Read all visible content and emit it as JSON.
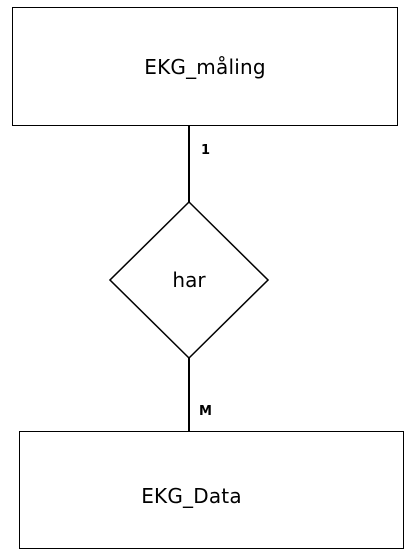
{
  "entities": {
    "top": {
      "label": "EKG_måling"
    },
    "bottom": {
      "label": "EKG_Data"
    }
  },
  "relationship": {
    "label": "har"
  },
  "cardinality": {
    "top": "1",
    "bottom": "M"
  }
}
